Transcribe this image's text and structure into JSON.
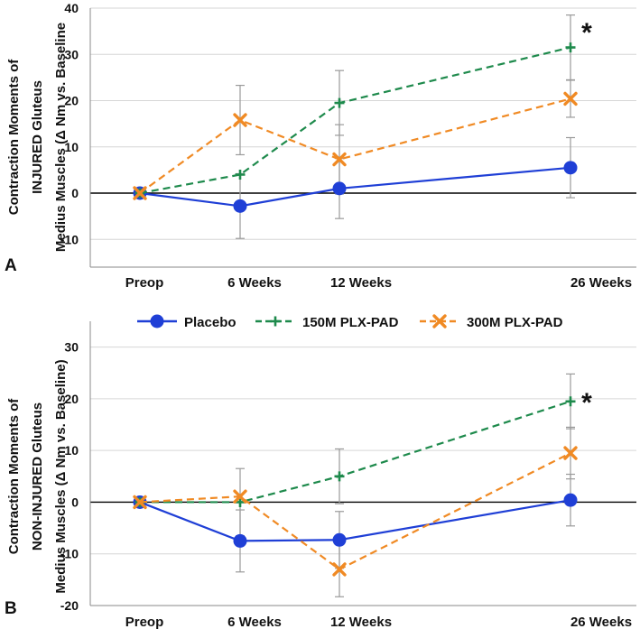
{
  "legend": {
    "items": [
      {
        "label": "Placebo",
        "color": "#1f3fd6",
        "marker": "circle",
        "dash": "solid"
      },
      {
        "label": "150M PLX-PAD",
        "color": "#1e8a4c",
        "marker": "plus",
        "dash": "dashed"
      },
      {
        "label": "300M PLX-PAD",
        "color": "#f08a24",
        "marker": "x",
        "dash": "dashed"
      }
    ]
  },
  "chart_data": [
    {
      "type": "line",
      "panel_letter": "A",
      "ylabel": [
        "Contraction Moments of",
        "INJURED Gluteus",
        "Medius Muscles (Δ Nm vs. Baseline"
      ],
      "categories": [
        "Preop",
        "6 Weeks",
        "12 Weeks",
        "26 Weeks"
      ],
      "x": [
        0,
        6,
        12,
        26
      ],
      "yticks": [
        40,
        30,
        20,
        10,
        0,
        -10
      ],
      "ylim": [
        -16,
        40
      ],
      "grid": true,
      "significance": "*",
      "series": [
        {
          "name": "Placebo",
          "values": [
            0,
            -2.8,
            1,
            5.5
          ],
          "errors": [
            0,
            7,
            6.5,
            6.5
          ]
        },
        {
          "name": "150M PLX-PAD",
          "values": [
            0,
            4,
            19.5,
            31.5
          ],
          "errors": [
            0,
            0,
            7,
            7
          ]
        },
        {
          "name": "300M PLX-PAD",
          "values": [
            0,
            15.8,
            7.3,
            20.4
          ],
          "errors": [
            0,
            7.5,
            7.5,
            4
          ]
        }
      ]
    },
    {
      "type": "line",
      "panel_letter": "B",
      "ylabel": [
        "Contraction Moments of",
        "NON-INJURED Gluteus",
        "Medius Muscles (Δ Nm vs. Baseline)"
      ],
      "categories": [
        "Preop",
        "6 Weeks",
        "12 Weeks",
        "26 Weeks"
      ],
      "x": [
        0,
        6,
        12,
        26
      ],
      "yticks": [
        30,
        20,
        10,
        0,
        -10,
        -20
      ],
      "ylim": [
        -20,
        35
      ],
      "grid": true,
      "significance": "*",
      "series": [
        {
          "name": "Placebo",
          "values": [
            0,
            -7.5,
            -7.3,
            0.4
          ],
          "errors": [
            0,
            6,
            5.5,
            5
          ]
        },
        {
          "name": "150M PLX-PAD",
          "values": [
            0,
            0,
            5,
            19.5
          ],
          "errors": [
            0,
            6.5,
            5.3,
            5.3
          ]
        },
        {
          "name": "300M PLX-PAD",
          "values": [
            0,
            1.1,
            -13,
            9.5
          ],
          "errors": [
            0,
            0,
            5.3,
            5
          ]
        }
      ]
    }
  ]
}
